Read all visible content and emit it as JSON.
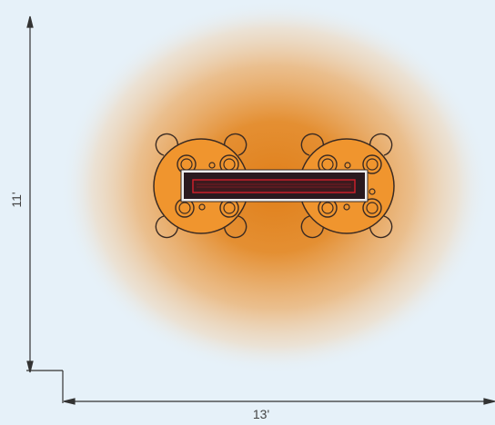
{
  "dimensions": {
    "height_label": "11'",
    "width_label": "13'"
  },
  "colors": {
    "background": "#e6f1f9",
    "heat_center": "#e28420",
    "table_fill": "#f0952e",
    "heater_body": "#2a1a1f",
    "heater_element": "#d4202b",
    "outline": "#3a2a22",
    "dimension_line": "#333333"
  },
  "scene": {
    "tables": 2,
    "chairs_per_table": 4,
    "heaters": 1
  }
}
